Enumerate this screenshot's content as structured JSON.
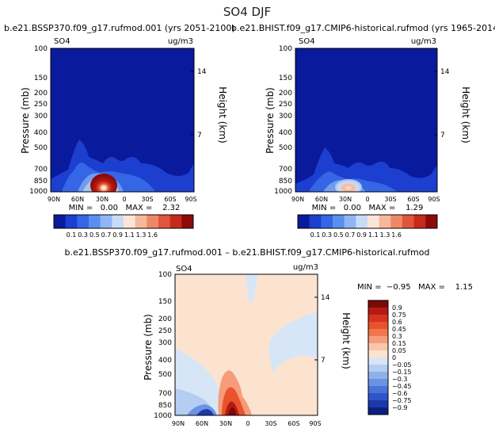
{
  "figure": {
    "title": "SO4 DJF"
  },
  "chart_data": [
    {
      "type": "heatmap",
      "panel": "future",
      "title": "b.e21.BSSP370.f09_g17.rufmod.001 (yrs 2051-2100)",
      "variable": "SO4",
      "units": "ug/m3",
      "xlabel": "",
      "ylabel": "Pressure (mb)",
      "ylabel_right": "Height (km)",
      "x_ticks": [
        "90N",
        "60N",
        "30N",
        "0",
        "30S",
        "60S",
        "90S"
      ],
      "y_ticks": [
        "100",
        "150",
        "200",
        "250",
        "300",
        "400",
        "500",
        "700",
        "850",
        "1000"
      ],
      "height_ticks": [
        "14",
        "7"
      ],
      "ylim": [
        100,
        1000
      ],
      "stats_text": "MIN =   0.00   MAX =    2.32",
      "min": 0.0,
      "max": 2.32,
      "colorbar_levels": [
        "0.1",
        "0.3",
        "0.5",
        "0.7",
        "0.9",
        "1.1",
        "1.3",
        "1.6"
      ],
      "colorbar_colors": [
        "#0a1a9c",
        "#1c3fd0",
        "#3566e6",
        "#5a8ff0",
        "#8fb5f5",
        "#c8dcf7",
        "#fbe5d6",
        "#f6b89a",
        "#ef8766",
        "#e0553c",
        "#c62a1c",
        "#8c0a0a"
      ],
      "background_color": "#0a1a9c"
    },
    {
      "type": "heatmap",
      "panel": "historical",
      "title": "b.e21.BHIST.f09_g17.CMIP6-historical.rufmod (yrs 1965-2014)",
      "variable": "SO4",
      "units": "ug/m3",
      "xlabel": "",
      "ylabel": "Pressure (mb)",
      "ylabel_right": "Height (km)",
      "x_ticks": [
        "90N",
        "60N",
        "30N",
        "0",
        "30S",
        "60S",
        "90S"
      ],
      "y_ticks": [
        "100",
        "150",
        "200",
        "250",
        "300",
        "400",
        "500",
        "700",
        "850",
        "1000"
      ],
      "height_ticks": [
        "14",
        "7"
      ],
      "ylim": [
        100,
        1000
      ],
      "stats_text": "MIN =   0.00   MAX =    1.29",
      "min": 0.0,
      "max": 1.29,
      "colorbar_levels": [
        "0.1",
        "0.3",
        "0.5",
        "0.7",
        "0.9",
        "1.1",
        "1.3",
        "1.6"
      ],
      "colorbar_colors": [
        "#0a1a9c",
        "#1c3fd0",
        "#3566e6",
        "#5a8ff0",
        "#8fb5f5",
        "#c8dcf7",
        "#fbe5d6",
        "#f6b89a",
        "#ef8766",
        "#e0553c",
        "#c62a1c",
        "#8c0a0a"
      ],
      "background_color": "#0a1a9c"
    },
    {
      "type": "heatmap",
      "panel": "difference",
      "title": "b.e21.BSSP370.f09_g17.rufmod.001 – b.e21.BHIST.f09_g17.CMIP6-historical.rufmod",
      "variable": "SO4",
      "units": "ug/m3",
      "xlabel": "",
      "ylabel": "Pressure (mb)",
      "ylabel_right": "Height (km)",
      "x_ticks": [
        "90N",
        "60N",
        "30N",
        "0",
        "30S",
        "60S",
        "90S"
      ],
      "y_ticks": [
        "100",
        "150",
        "200",
        "250",
        "300",
        "400",
        "500",
        "700",
        "850",
        "1000"
      ],
      "height_ticks": [
        "14",
        "7"
      ],
      "ylim": [
        100,
        1000
      ],
      "stats_text": "MIN =  −0.95   MAX =    1.15",
      "min": -0.95,
      "max": 1.15,
      "colorbar_levels": [
        "0.9",
        "0.75",
        "0.6",
        "0.45",
        "0.3",
        "0.15",
        "0.05",
        "0",
        "−0.05",
        "−0.15",
        "−0.3",
        "−0.45",
        "−0.6",
        "−0.75",
        "−0.9"
      ],
      "colorbar_colors": [
        "#7a0a0a",
        "#b51a12",
        "#d73220",
        "#e8532c",
        "#f1764a",
        "#f59c7a",
        "#f8c6a8",
        "#fbe3d0",
        "#d6e6f7",
        "#b4cdf0",
        "#8fb0ea",
        "#6c92e3",
        "#4873d8",
        "#2d56c8",
        "#1b3aa8",
        "#0d1f86"
      ],
      "background_color": "#fbe3d0"
    }
  ]
}
